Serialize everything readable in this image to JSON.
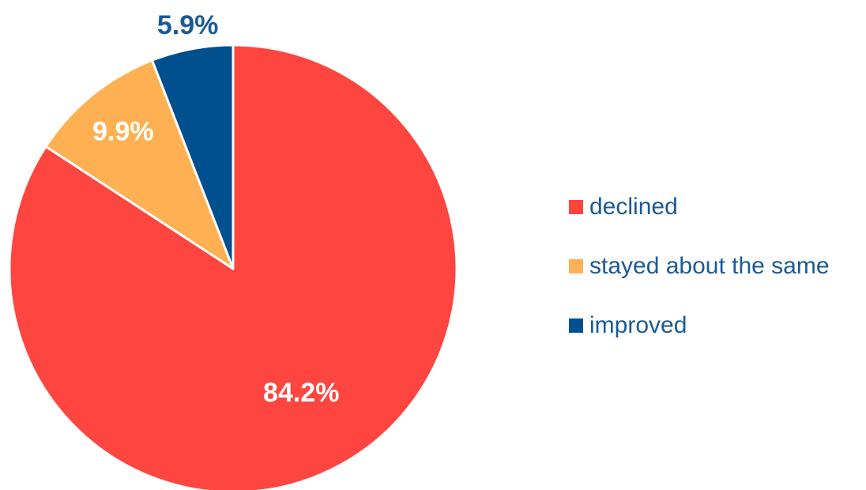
{
  "chart_data": {
    "type": "pie",
    "categories": [
      "declined",
      "stayed about the same",
      "improved"
    ],
    "values": [
      84.2,
      9.9,
      5.9
    ],
    "value_labels": [
      "84.2%",
      "9.9%",
      "5.9%"
    ],
    "colors": [
      "#ff4540",
      "#ffb052",
      "#004f8f"
    ],
    "legend": "right"
  }
}
